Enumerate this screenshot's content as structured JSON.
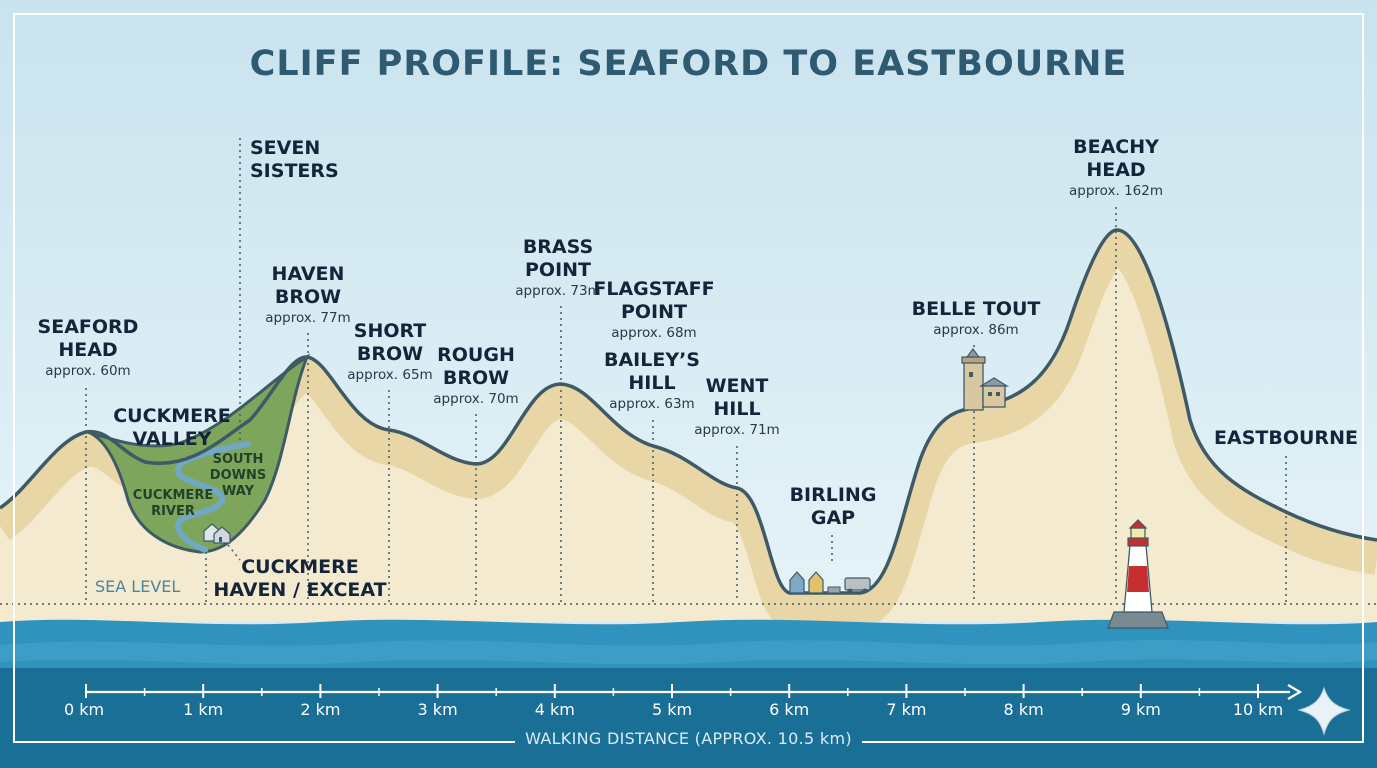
{
  "title": "CLIFF PROFILE: SEAFORD TO EASTBOURNE",
  "colors": {
    "sky_top": "#c9e3ee",
    "sky_bottom": "#e6f3f8",
    "chalk": "#f3ead0",
    "sand_band": "#e8d6a6",
    "outline": "#3e5a66",
    "valley_green": "#7da65c",
    "river": "#6fa9c4",
    "sea_light": "#2f93be",
    "sea_dark": "#1a6f97",
    "frame": "#ffffff"
  },
  "sea_level_label": "SEA LEVEL",
  "landmarks": [
    {
      "id": "seaford-head",
      "name_lines": [
        "SEAFORD",
        "HEAD"
      ],
      "elevation": "approx. 60m"
    },
    {
      "id": "seven-sisters",
      "name_lines": [
        "SEVEN",
        "SISTERS"
      ],
      "elevation": ""
    },
    {
      "id": "cuckmere-valley",
      "name_lines": [
        "CUCKMERE",
        "VALLEY"
      ],
      "elevation": ""
    },
    {
      "id": "haven-brow",
      "name_lines": [
        "HAVEN",
        "BROW"
      ],
      "elevation": "approx. 77m"
    },
    {
      "id": "short-brow",
      "name_lines": [
        "SHORT",
        "BROW"
      ],
      "elevation": "approx. 65m"
    },
    {
      "id": "rough-brow",
      "name_lines": [
        "ROUGH",
        "BROW"
      ],
      "elevation": "approx. 70m"
    },
    {
      "id": "brass-point",
      "name_lines": [
        "BRASS",
        "POINT"
      ],
      "elevation": "approx. 73m"
    },
    {
      "id": "flagstaff-point",
      "name_lines": [
        "FLAGSTAFF",
        "POINT"
      ],
      "elevation": "approx. 68m"
    },
    {
      "id": "baileys-hill",
      "name_lines": [
        "BAILEY’S",
        "HILL"
      ],
      "elevation": "approx. 63m"
    },
    {
      "id": "went-hill",
      "name_lines": [
        "WENT",
        "HILL"
      ],
      "elevation": "approx. 71m"
    },
    {
      "id": "birling-gap",
      "name_lines": [
        "BIRLING",
        "GAP"
      ],
      "elevation": ""
    },
    {
      "id": "belle-tout",
      "name_lines": [
        "BELLE TOUT"
      ],
      "elevation": "approx. 86m"
    },
    {
      "id": "beachy-head",
      "name_lines": [
        "BEACHY",
        "HEAD"
      ],
      "elevation": "approx. 162m"
    },
    {
      "id": "eastbourne",
      "name_lines": [
        "EASTBOURNE"
      ],
      "elevation": ""
    },
    {
      "id": "cuckmere-haven",
      "name_lines": [
        "CUCKMERE",
        "HAVEN / EXCEAT"
      ],
      "elevation": ""
    }
  ],
  "valley_labels": {
    "south_downs_way": [
      "SOUTH",
      "DOWNS",
      "WAY"
    ],
    "cuckmere_river": [
      "CUCKMERE",
      "RIVER"
    ]
  },
  "axis": {
    "ticks": [
      "0 km",
      "1 km",
      "2 km",
      "3 km",
      "4 km",
      "5 km",
      "6 km",
      "7 km",
      "8 km",
      "9 km",
      "10 km"
    ],
    "title": "WALKING DISTANCE (APPROX. 10.5 km)"
  }
}
